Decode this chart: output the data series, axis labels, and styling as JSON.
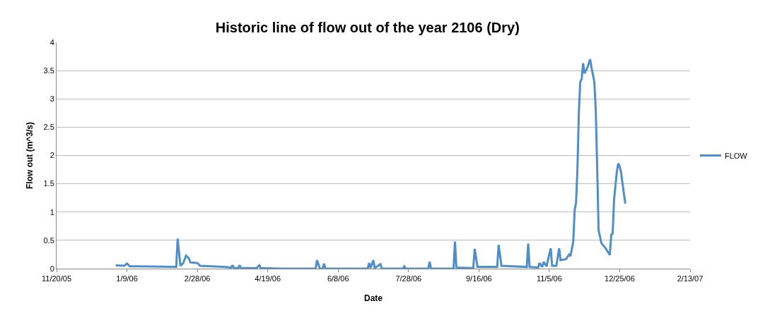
{
  "chart_data": {
    "type": "line",
    "title": "Historic line of flow out of the year 2106 (Dry)",
    "xlabel": "Date",
    "ylabel": "Flow out (m^3/s)",
    "xlim": [
      "2005-11-20",
      "2007-02-13"
    ],
    "xticks": [
      {
        "value": "2005-11-20",
        "label": "11/20/05"
      },
      {
        "value": "2006-01-09",
        "label": "1/9/06"
      },
      {
        "value": "2006-02-28",
        "label": "2/28/06"
      },
      {
        "value": "2006-04-19",
        "label": "4/19/06"
      },
      {
        "value": "2006-06-08",
        "label": "6/8/06"
      },
      {
        "value": "2006-07-28",
        "label": "7/28/06"
      },
      {
        "value": "2006-09-16",
        "label": "9/16/06"
      },
      {
        "value": "2006-11-05",
        "label": "11/5/06"
      },
      {
        "value": "2006-12-25",
        "label": "12/25/06"
      },
      {
        "value": "2007-02-13",
        "label": "2/13/07"
      }
    ],
    "ylim": [
      0,
      4
    ],
    "yticks": [
      0,
      0.5,
      1,
      1.5,
      2,
      2.5,
      3,
      3.5,
      4
    ],
    "grid": "y",
    "legend": "right",
    "marker": "none",
    "line_style": "solid",
    "series": [
      {
        "name": "FLOW",
        "color": "#4f8ec9",
        "x": [
          "2006-01-01",
          "2006-01-07",
          "2006-01-09",
          "2006-01-11",
          "2006-01-17",
          "2006-02-13",
          "2006-02-14",
          "2006-02-16",
          "2006-02-18",
          "2006-02-20",
          "2006-02-22",
          "2006-02-23",
          "2006-02-28",
          "2006-03-02",
          "2006-03-19",
          "2006-03-24",
          "2006-03-25",
          "2006-03-26",
          "2006-03-29",
          "2006-03-30",
          "2006-03-31",
          "2006-04-11",
          "2006-04-13",
          "2006-04-14",
          "2006-04-28",
          "2006-05-23",
          "2006-05-24",
          "2006-05-26",
          "2006-05-28",
          "2006-05-29",
          "2006-05-30",
          "2006-06-29",
          "2006-06-30",
          "2006-07-01",
          "2006-07-03",
          "2006-07-04",
          "2006-07-08",
          "2006-07-09",
          "2006-07-24",
          "2006-07-25",
          "2006-07-26",
          "2006-08-11",
          "2006-08-12",
          "2006-08-13",
          "2006-08-29",
          "2006-08-30",
          "2006-08-31",
          "2006-09-12",
          "2006-09-13",
          "2006-09-15",
          "2006-09-29",
          "2006-09-30",
          "2006-10-02",
          "2006-10-20",
          "2006-10-21",
          "2006-10-22",
          "2006-10-28",
          "2006-10-29",
          "2006-10-31",
          "2006-11-01",
          "2006-11-03",
          "2006-11-06",
          "2006-11-07",
          "2006-11-10",
          "2006-11-12",
          "2006-11-13",
          "2006-11-17",
          "2006-11-19",
          "2006-11-20",
          "2006-11-22",
          "2006-11-23",
          "2006-11-24",
          "2006-11-25",
          "2006-11-26",
          "2006-11-27",
          "2006-11-28",
          "2006-11-29",
          "2006-11-30",
          "2006-12-02",
          "2006-12-04",
          "2006-12-05",
          "2006-12-07",
          "2006-12-08",
          "2006-12-09",
          "2006-12-10",
          "2006-12-12",
          "2006-12-15",
          "2006-12-18",
          "2006-12-19",
          "2006-12-20",
          "2006-12-21",
          "2006-12-23",
          "2006-12-24",
          "2006-12-25",
          "2006-12-26",
          "2006-12-27",
          "2006-12-29"
        ],
        "values": [
          0.06,
          0.05,
          0.09,
          0.04,
          0.04,
          0.03,
          0.53,
          0.05,
          0.1,
          0.23,
          0.18,
          0.11,
          0.1,
          0.05,
          0.03,
          0.02,
          0.06,
          0.01,
          0.01,
          0.06,
          0.01,
          0.01,
          0.06,
          0.01,
          0,
          0,
          0.15,
          0,
          0,
          0.09,
          0,
          0,
          0.1,
          0.01,
          0.15,
          0.01,
          0.08,
          0,
          0,
          0.04,
          0,
          0,
          0.12,
          0,
          0,
          0.48,
          0.02,
          0.01,
          0.35,
          0.03,
          0.03,
          0.42,
          0.05,
          0.03,
          0.44,
          0.03,
          0.02,
          0.1,
          0.03,
          0.12,
          0.04,
          0.36,
          0.05,
          0.05,
          0.36,
          0.15,
          0.17,
          0.25,
          0.22,
          0.47,
          1.03,
          1.17,
          1.77,
          2.77,
          3.3,
          3.35,
          3.63,
          3.45,
          3.55,
          3.7,
          3.55,
          3.3,
          2.8,
          1.8,
          0.68,
          0.45,
          0.36,
          0.24,
          0.6,
          0.62,
          1.22,
          1.72,
          1.86,
          1.8,
          1.7,
          1.5,
          1.15
        ]
      }
    ]
  }
}
